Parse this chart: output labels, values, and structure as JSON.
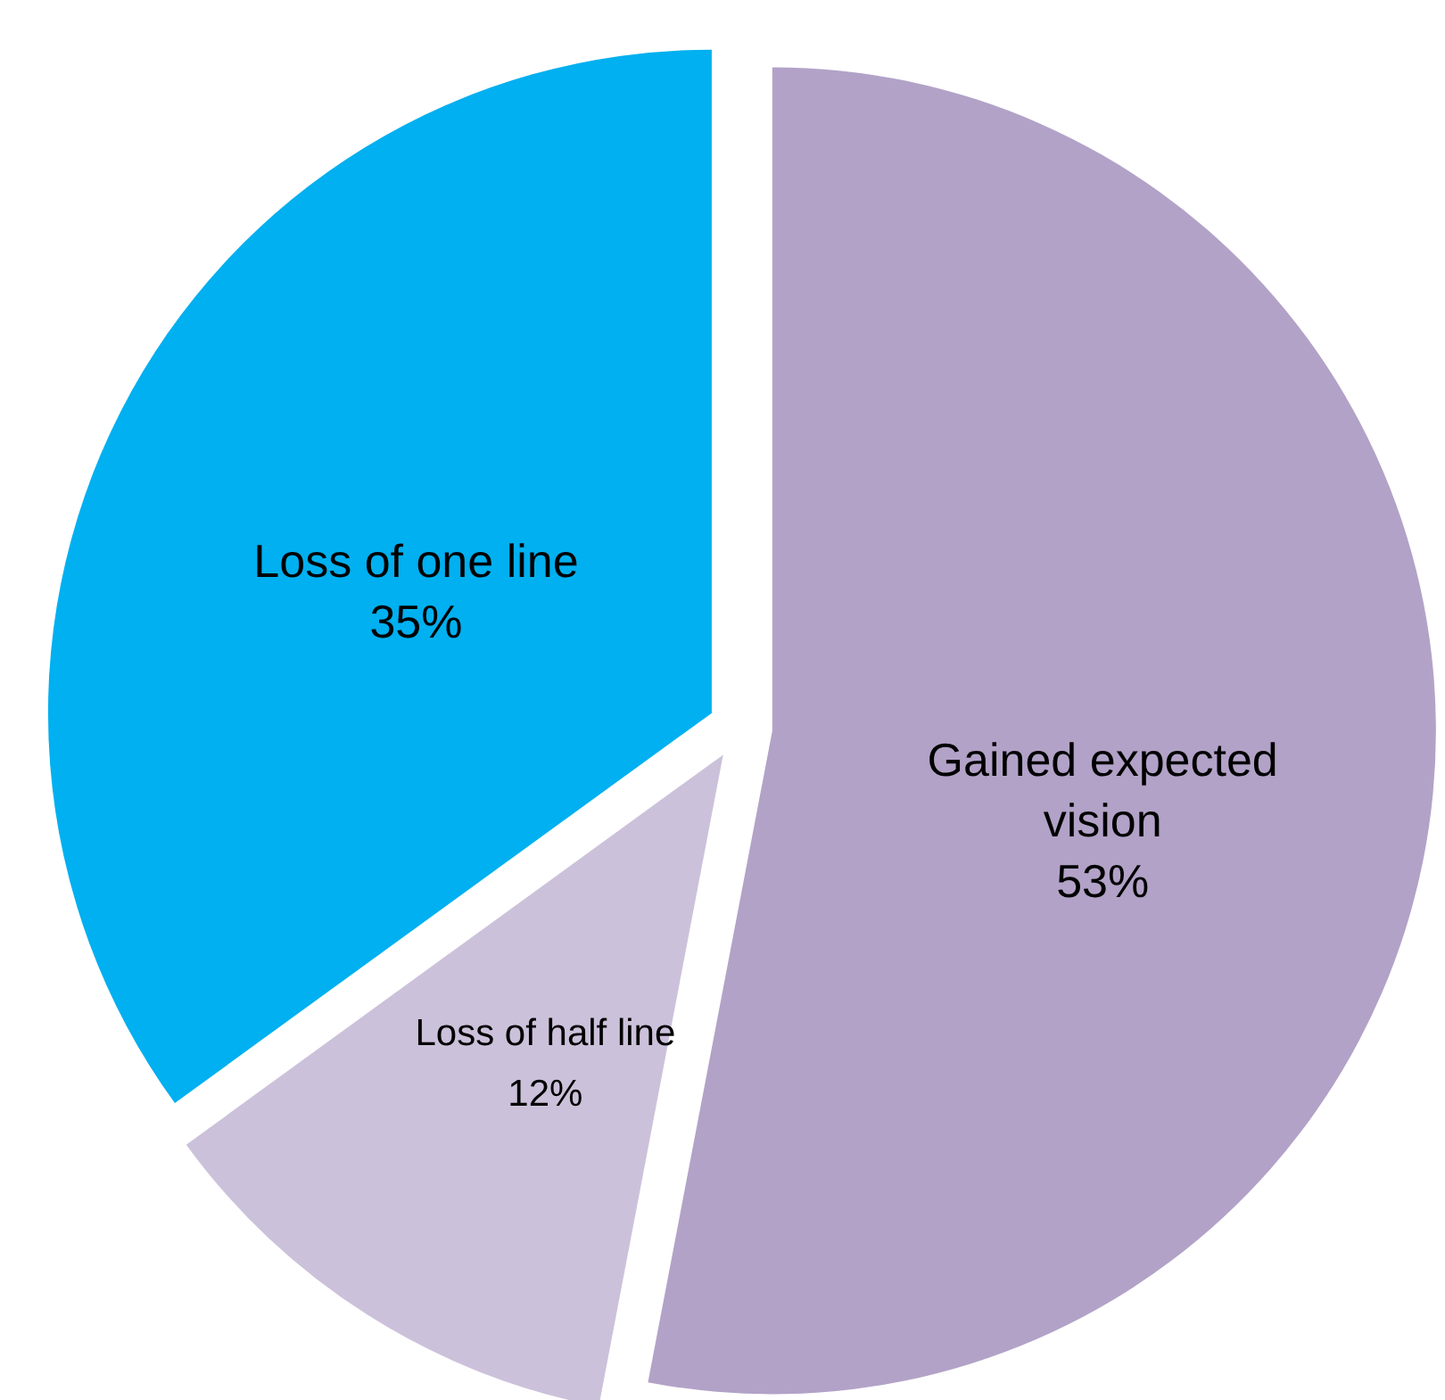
{
  "chart_data": {
    "type": "pie",
    "categories": [
      "Gained expected vision",
      "Loss of half line",
      "Loss of one line"
    ],
    "values": [
      53,
      12,
      35
    ],
    "colors": [
      "#b2a2c7",
      "#ccc1da",
      "#00b0f0"
    ],
    "value_labels": [
      "53%",
      "12%",
      "35%"
    ]
  }
}
